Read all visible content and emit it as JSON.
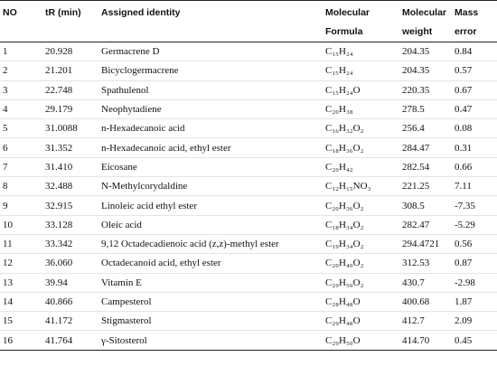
{
  "headers": {
    "no": "NO",
    "tr": "tR (min)",
    "identity": "Assigned identity",
    "formula_1": "Molecular",
    "formula_2": "Formula",
    "weight_1": "Molecular",
    "weight_2": "weight",
    "error_1": "Mass",
    "error_2": "error"
  },
  "rows": [
    {
      "no": "1",
      "tr": "20.928",
      "identity": "Germacrene D",
      "formula": "C₁₅H₂₄",
      "weight": "204.35",
      "error": "0.84"
    },
    {
      "no": "2",
      "tr": "21.201",
      "identity": "Bicyclogermacrene",
      "formula": "C₁₅H₂₄",
      "weight": "204.35",
      "error": "0.57"
    },
    {
      "no": "3",
      "tr": "22.748",
      "identity": "Spathulenol",
      "formula": "C₁₅H₂₄O",
      "weight": "220.35",
      "error": "0.67"
    },
    {
      "no": "4",
      "tr": "29.179",
      "identity": "Neophytadiene",
      "formula": "C₂₀H₃₈",
      "weight": "278.5",
      "error": "0.47"
    },
    {
      "no": "5",
      "tr": "31.0088",
      "identity": "n-Hexadecanoic acid",
      "formula": "C₁₆H₃₂O₂",
      "weight": "256.4",
      "error": "0.08"
    },
    {
      "no": "6",
      "tr": "31.352",
      "identity": "n-Hexadecanoic acid, ethyl ester",
      "formula": "C₁₈H₃₆O₂",
      "weight": "284.47",
      "error": "0.31"
    },
    {
      "no": "7",
      "tr": "31.410",
      "identity": "Eicosane",
      "formula": "C₂₀H₄₂",
      "weight": "282.54",
      "error": "0.66"
    },
    {
      "no": "8",
      "tr": "32.488",
      "identity": "N-Methylcorydaldine",
      "formula": "C₁₂H₁₅NO₃",
      "weight": "221.25",
      "error": "7.11"
    },
    {
      "no": "9",
      "tr": "32.915",
      "identity": "Linoleic acid ethyl ester",
      "formula": "C₂₀H₃₆O₂",
      "weight": "308.5",
      "error": "-7.35"
    },
    {
      "no": "10",
      "tr": "33.128",
      "identity": "Oleic acid",
      "formula": "C₁₈H₃₄O₂",
      "weight": "282.47",
      "error": "-5.29"
    },
    {
      "no": "11",
      "tr": "33.342",
      "identity": "9,12 Octadecadienoic acid (z,z)-methyl ester",
      "formula": "C₁₉H₃₄O₂",
      "weight": "294.4721",
      "error": "0.56"
    },
    {
      "no": "12",
      "tr": "36.060",
      "identity": "Octadecanoid acid, ethyl ester",
      "formula": "C₂₀H₄₀O₂",
      "weight": "312.53",
      "error": "0.87"
    },
    {
      "no": "13",
      "tr": "39.94",
      "identity": "Vitamin E",
      "formula": "C₂₉H₅₀O₂",
      "weight": "430.7",
      "error": "-2.98"
    },
    {
      "no": "14",
      "tr": "40.866",
      "identity": "Campesterol",
      "formula": "C₂₈H₄₈O",
      "weight": "400.68",
      "error": "1.87"
    },
    {
      "no": "15",
      "tr": "41.172",
      "identity": "Stigmasterol",
      "formula": "C₂₉H₄₈O",
      "weight": "412.7",
      "error": "2.09"
    },
    {
      "no": "16",
      "tr": "41.764",
      "identity": "γ-Sitosterol",
      "formula": "C₂₉H₅₀O",
      "weight": "414.70",
      "error": "0.45"
    }
  ]
}
